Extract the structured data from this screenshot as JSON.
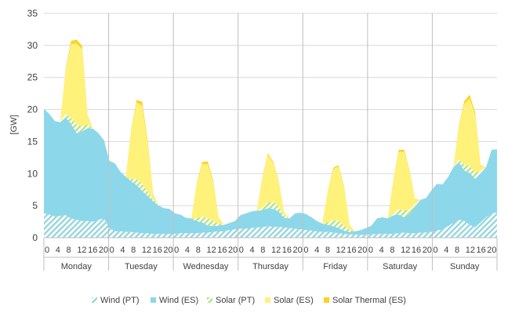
{
  "chart_data": {
    "type": "area",
    "stacked": true,
    "ylabel": "[GW]",
    "ylim": [
      0,
      35
    ],
    "y_ticks": [
      0,
      5,
      10,
      15,
      20,
      25,
      30,
      35
    ],
    "hour_tick_labels": [
      "0",
      "4",
      "8",
      "12",
      "16",
      "20"
    ],
    "days": [
      "Monday",
      "Tuesday",
      "Wednesday",
      "Thursday",
      "Friday",
      "Saturday",
      "Sunday"
    ],
    "points_per_day": 12,
    "x_note": "2-hour steps; 84 points spanning Monday 0h to Sunday 22h",
    "grid": "horizontal gridlines",
    "legend_position": "bottom",
    "series": [
      {
        "name": "Wind (PT)",
        "color": "#8fd4dc",
        "pattern": "hatched",
        "values": [
          3.8,
          3.6,
          3.3,
          3.4,
          3.5,
          3.0,
          2.8,
          2.6,
          2.6,
          2.5,
          2.8,
          3.0,
          1.5,
          1.0,
          1.0,
          0.9,
          0.9,
          0.8,
          0.7,
          0.7,
          0.6,
          0.6,
          0.6,
          0.6,
          0.6,
          0.7,
          0.7,
          0.7,
          0.7,
          0.8,
          0.8,
          0.9,
          1.0,
          1.0,
          1.2,
          1.3,
          1.4,
          1.4,
          1.5,
          1.6,
          1.6,
          1.8,
          1.7,
          1.7,
          1.6,
          1.5,
          1.4,
          1.3,
          1.2,
          1.1,
          1.0,
          0.9,
          0.9,
          0.8,
          0.7,
          0.6,
          0.5,
          0.5,
          0.4,
          0.5,
          0.5,
          0.6,
          0.6,
          0.6,
          0.6,
          0.7,
          0.8,
          0.7,
          0.7,
          0.8,
          0.8,
          0.9,
          1.1,
          1.3,
          1.8,
          2.3,
          2.8,
          2.6,
          2.0,
          1.6,
          2.4,
          3.2,
          3.8,
          3.9
        ]
      },
      {
        "name": "Wind (ES)",
        "color": "#8dd7ea",
        "pattern": "solid",
        "values": [
          16.3,
          15.7,
          14.9,
          14.6,
          15.3,
          14.7,
          13.5,
          14.0,
          14.5,
          14.5,
          13.5,
          12.2,
          10.5,
          10.6,
          9.3,
          8.6,
          7.9,
          7.4,
          6.6,
          5.8,
          5.1,
          4.4,
          4.0,
          3.9,
          3.2,
          2.9,
          2.4,
          2.3,
          1.9,
          1.6,
          1.1,
          0.9,
          0.9,
          1.0,
          1.1,
          1.3,
          2.1,
          2.4,
          2.6,
          2.6,
          2.7,
          2.8,
          2.8,
          2.4,
          1.5,
          1.5,
          2.4,
          2.6,
          2.5,
          2.1,
          1.6,
          1.3,
          1.1,
          1.0,
          0.8,
          0.5,
          0.4,
          0.5,
          0.8,
          1.0,
          1.4,
          2.4,
          2.6,
          2.4,
          2.9,
          2.9,
          2.4,
          3.0,
          4.2,
          5.1,
          5.4,
          6.5,
          7.3,
          7.0,
          7.6,
          8.7,
          9.0,
          7.9,
          8.1,
          7.6,
          7.7,
          7.8,
          9.9,
          9.9
        ]
      },
      {
        "name": "Solar (PT)",
        "color": "#aee37a",
        "pattern": "hatched",
        "values": [
          0,
          0,
          0,
          0,
          0.5,
          1.0,
          1.3,
          0.8,
          0.5,
          0,
          0,
          0,
          0,
          0,
          0,
          0,
          0.4,
          0.9,
          1.1,
          0.7,
          0.3,
          0,
          0,
          0,
          0,
          0,
          0,
          0,
          0.4,
          0.9,
          1.1,
          0.8,
          0.3,
          0,
          0,
          0,
          0,
          0,
          0,
          0,
          0.4,
          0.9,
          1.1,
          0.8,
          0.3,
          0,
          0,
          0,
          0,
          0,
          0,
          0,
          0.4,
          0.9,
          1.1,
          0.8,
          0.3,
          0,
          0,
          0,
          0,
          0,
          0,
          0,
          0.4,
          0.8,
          1.0,
          0.7,
          0.3,
          0,
          0,
          0,
          0,
          0,
          0,
          0,
          0.4,
          0.9,
          1.1,
          0.9,
          0.3,
          0,
          0,
          0
        ]
      },
      {
        "name": "Solar (ES)",
        "color": "#fff27a",
        "pattern": "solid",
        "values": [
          0,
          0,
          0,
          0,
          7.0,
          11.5,
          12.7,
          12.0,
          1.2,
          0,
          0,
          0,
          0,
          0,
          0,
          0,
          7.5,
          12.0,
          12.2,
          7.5,
          0.6,
          0,
          0,
          0,
          0,
          0,
          0,
          0,
          5.5,
          8.2,
          8.5,
          6.0,
          0.8,
          0,
          0,
          0,
          0,
          0,
          0,
          0,
          4.5,
          7.5,
          6.0,
          4.0,
          0.6,
          0,
          0,
          0,
          0,
          0,
          0,
          0,
          4.8,
          8.0,
          8.5,
          6.0,
          0.8,
          0,
          0,
          0,
          0,
          0,
          0,
          0,
          5.0,
          9.0,
          9.2,
          5.8,
          0.7,
          0,
          0,
          0,
          0,
          0,
          0,
          0,
          5.0,
          9.5,
          10.5,
          9.0,
          0.8,
          0,
          0,
          0
        ]
      },
      {
        "name": "Solar Thermal (ES)",
        "color": "#ffd21f",
        "pattern": "solid",
        "values": [
          0,
          0,
          0,
          0,
          0.2,
          0.5,
          0.6,
          0.5,
          0.2,
          0,
          0,
          0,
          0,
          0,
          0,
          0,
          0.2,
          0.4,
          0.6,
          0.5,
          0.2,
          0,
          0,
          0,
          0,
          0,
          0,
          0,
          0.1,
          0.3,
          0.4,
          0.3,
          0.1,
          0,
          0,
          0,
          0,
          0,
          0,
          0,
          0.1,
          0.2,
          0.2,
          0.1,
          0,
          0,
          0,
          0,
          0,
          0,
          0,
          0,
          0.1,
          0.2,
          0.2,
          0.1,
          0,
          0,
          0,
          0,
          0,
          0,
          0,
          0,
          0.1,
          0.3,
          0.3,
          0.2,
          0.1,
          0,
          0,
          0,
          0,
          0,
          0,
          0,
          0.2,
          0.4,
          0.6,
          0.4,
          0.1,
          0,
          0,
          0
        ]
      }
    ]
  }
}
